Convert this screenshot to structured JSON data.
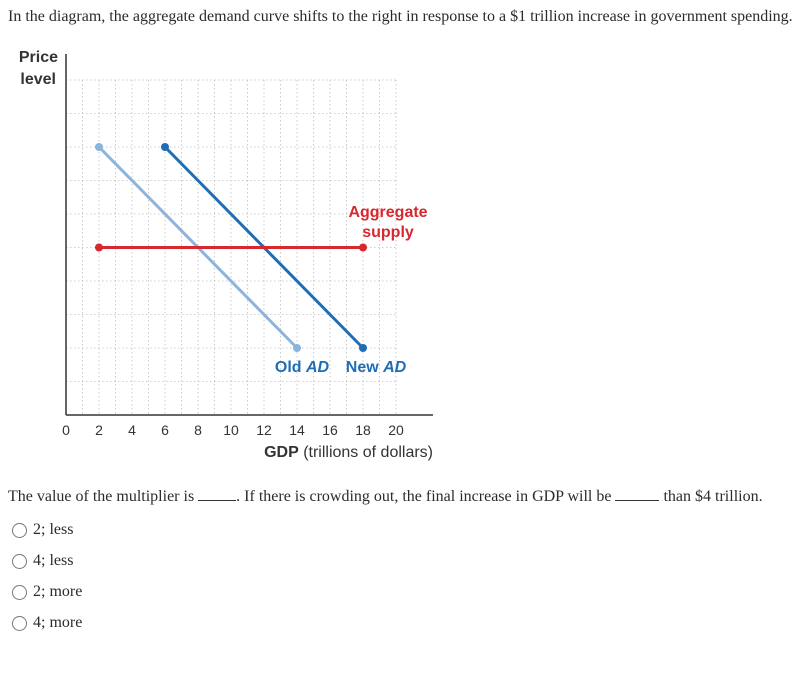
{
  "question": "In the diagram, the aggregate demand curve shifts to the right in response to a $1 trillion increase in government spending.",
  "fill_in": {
    "part1": "The value of the multiplier is",
    "part2": ". If there is crowding out, the final increase in GDP will be",
    "part3": "than $4 trillion."
  },
  "options": [
    {
      "label": "2; less"
    },
    {
      "label": "4; less"
    },
    {
      "label": "2; more"
    },
    {
      "label": "4; more"
    }
  ],
  "chart_data": {
    "type": "line",
    "ylabel_line1": "Price",
    "ylabel_line2": "level",
    "xlabel_bold": "GDP",
    "xlabel_rest": "(trillions of dollars)",
    "x_ticks": [
      "0",
      "2",
      "4",
      "6",
      "8",
      "10",
      "12",
      "14",
      "16",
      "18",
      "20"
    ],
    "xlim": [
      0,
      20
    ],
    "ylim": [
      0,
      10
    ],
    "grid": true,
    "series": [
      {
        "name": "Old AD",
        "name_prefix": "Old",
        "name_italic": "AD",
        "color": "#8cb4dc",
        "points": [
          [
            2,
            8
          ],
          [
            14,
            2
          ]
        ]
      },
      {
        "name": "New AD",
        "name_prefix": "New",
        "name_italic": "AD",
        "color": "#1f6eb5",
        "points": [
          [
            6,
            8
          ],
          [
            18,
            2
          ]
        ]
      },
      {
        "name": "Aggregate supply",
        "name_line1": "Aggregate",
        "name_line2": "supply",
        "color": "#d7282f",
        "points": [
          [
            2,
            5
          ],
          [
            18,
            5
          ]
        ]
      }
    ]
  }
}
